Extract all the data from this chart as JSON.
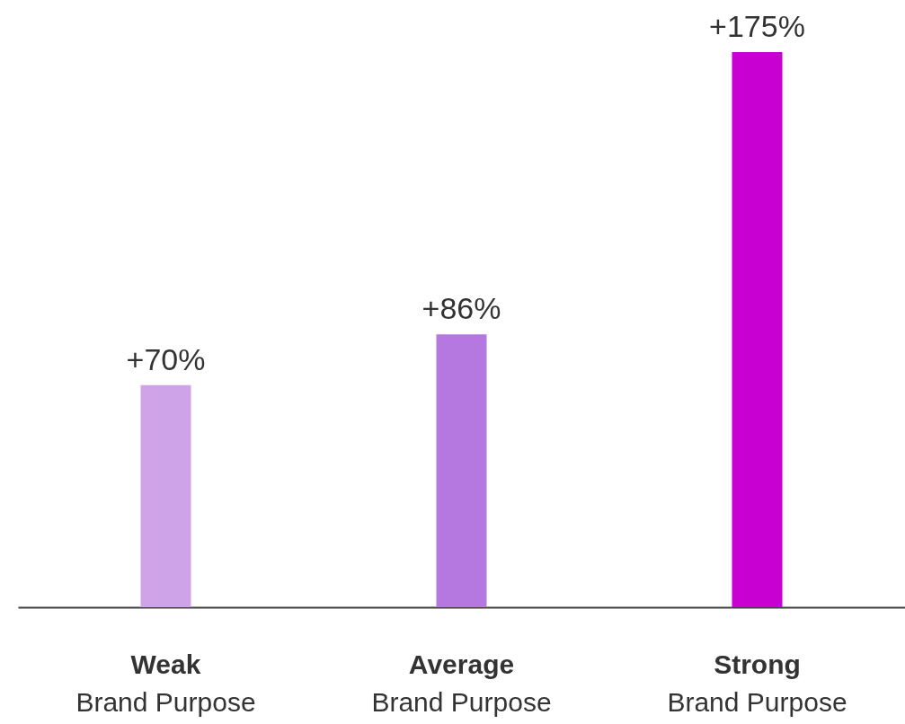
{
  "chart_data": {
    "type": "bar",
    "categories": [
      "Weak\nBrand Purpose",
      "Average\nBrand Purpose",
      "Strong\nBrand Purpose"
    ],
    "values": [
      70,
      86,
      175
    ],
    "colors": [
      "#cfa3e8",
      "#b577e0",
      "#c800d2"
    ],
    "value_labels": [
      "+70%",
      "+86%",
      "+175%"
    ]
  }
}
